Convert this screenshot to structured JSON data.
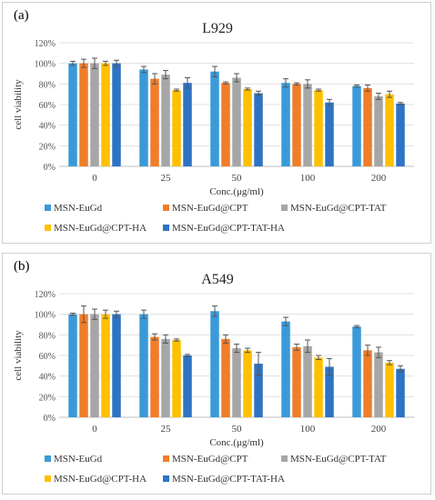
{
  "panels": [
    {
      "tag": "(a)",
      "chart_data": {
        "type": "bar",
        "title": "L929",
        "xlabel": "Conc.(μg/ml)",
        "ylabel": "cell viability",
        "categories": [
          "0",
          "25",
          "50",
          "100",
          "200"
        ],
        "ylim": [
          0,
          1.2
        ],
        "ytick_labels": [
          "0%",
          "20%",
          "40%",
          "60%",
          "80%",
          "100%",
          "120%"
        ],
        "grid": true,
        "legend": "bottom",
        "series": [
          {
            "name": "MSN-EuGd",
            "color": "#3A9AD9",
            "values": [
              1.0,
              0.94,
              0.92,
              0.81,
              0.78
            ],
            "errors": [
              0.02,
              0.03,
              0.05,
              0.04,
              0.01
            ]
          },
          {
            "name": "MSN-EuGd@CPT",
            "color": "#F07D2A",
            "values": [
              1.0,
              0.85,
              0.81,
              0.8,
              0.76
            ],
            "errors": [
              0.04,
              0.05,
              0.01,
              0.01,
              0.03
            ]
          },
          {
            "name": "MSN-EuGd@CPT-TAT",
            "color": "#A6A6A6",
            "values": [
              1.0,
              0.89,
              0.86,
              0.8,
              0.68
            ],
            "errors": [
              0.05,
              0.04,
              0.04,
              0.04,
              0.03
            ]
          },
          {
            "name": "MSN-EuGd@CPT-HA",
            "color": "#FFC000",
            "values": [
              1.0,
              0.74,
              0.75,
              0.74,
              0.7
            ],
            "errors": [
              0.02,
              0.01,
              0.01,
              0.01,
              0.03
            ]
          },
          {
            "name": "MSN-EuGd@CPT-TAT-HA",
            "color": "#2E73C4",
            "values": [
              1.0,
              0.81,
              0.71,
              0.62,
              0.61
            ],
            "errors": [
              0.03,
              0.05,
              0.02,
              0.03,
              0.01
            ]
          }
        ]
      }
    },
    {
      "tag": "(b)",
      "chart_data": {
        "type": "bar",
        "title": "A549",
        "xlabel": "Conc.(μg/ml)",
        "ylabel": "cell viability",
        "categories": [
          "0",
          "25",
          "50",
          "100",
          "200"
        ],
        "ylim": [
          0,
          1.2
        ],
        "ytick_labels": [
          "0%",
          "20%",
          "40%",
          "60%",
          "80%",
          "100%",
          "120%"
        ],
        "grid": true,
        "legend": "bottom",
        "series": [
          {
            "name": "MSN-EuGd",
            "color": "#3A9AD9",
            "values": [
              1.0,
              1.0,
              1.03,
              0.93,
              0.88
            ],
            "errors": [
              0.01,
              0.04,
              0.05,
              0.04,
              0.01
            ]
          },
          {
            "name": "MSN-EuGd@CPT",
            "color": "#F07D2A",
            "values": [
              1.0,
              0.78,
              0.76,
              0.68,
              0.65
            ],
            "errors": [
              0.08,
              0.03,
              0.04,
              0.03,
              0.05
            ]
          },
          {
            "name": "MSN-EuGd@CPT-TAT",
            "color": "#A6A6A6",
            "values": [
              1.0,
              0.76,
              0.67,
              0.69,
              0.63
            ],
            "errors": [
              0.05,
              0.04,
              0.04,
              0.06,
              0.05
            ]
          },
          {
            "name": "MSN-EuGd@CPT-HA",
            "color": "#FFC000",
            "values": [
              1.0,
              0.75,
              0.65,
              0.58,
              0.53
            ],
            "errors": [
              0.04,
              0.01,
              0.02,
              0.02,
              0.02
            ]
          },
          {
            "name": "MSN-EuGd@CPT-TAT-HA",
            "color": "#2E73C4",
            "values": [
              1.0,
              0.6,
              0.52,
              0.49,
              0.47
            ],
            "errors": [
              0.03,
              0.01,
              0.11,
              0.08,
              0.03
            ]
          }
        ]
      }
    }
  ]
}
